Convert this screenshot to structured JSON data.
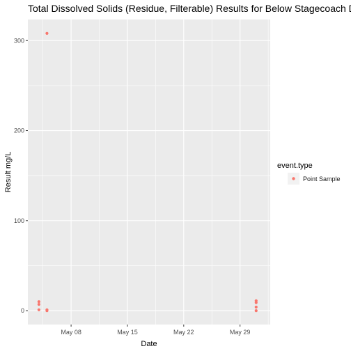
{
  "chart_data": {
    "type": "scatter",
    "title": "Total Dissolved Solids (Residue, Filterable) Results for Below Stagecoach Dam",
    "xlabel": "Date",
    "ylabel": "Result mg/L",
    "x_ticks": [
      "May 08",
      "May 15",
      "May 22",
      "May 29"
    ],
    "y_ticks": [
      0,
      100,
      200,
      300
    ],
    "legend": {
      "title": "event.type",
      "placement": "right",
      "entries": [
        {
          "label": "Point Sample",
          "color": "#F8766D"
        }
      ]
    },
    "series": [
      {
        "name": "Point Sample",
        "color": "#F8766D",
        "points": [
          {
            "x": "2023-05-04",
            "y": 10
          },
          {
            "x": "2023-05-04",
            "y": 7
          },
          {
            "x": "2023-05-04",
            "y": 1
          },
          {
            "x": "2023-05-05",
            "y": 308
          },
          {
            "x": "2023-05-05",
            "y": 1
          },
          {
            "x": "2023-05-05",
            "y": 0
          },
          {
            "x": "2023-05-31",
            "y": 11
          },
          {
            "x": "2023-05-31",
            "y": 9
          },
          {
            "x": "2023-05-31",
            "y": 4
          },
          {
            "x": "2023-05-31",
            "y": 0
          }
        ]
      }
    ],
    "grid": true,
    "panel_background": "#EBEBEB",
    "grid_color": "#FFFFFF"
  }
}
